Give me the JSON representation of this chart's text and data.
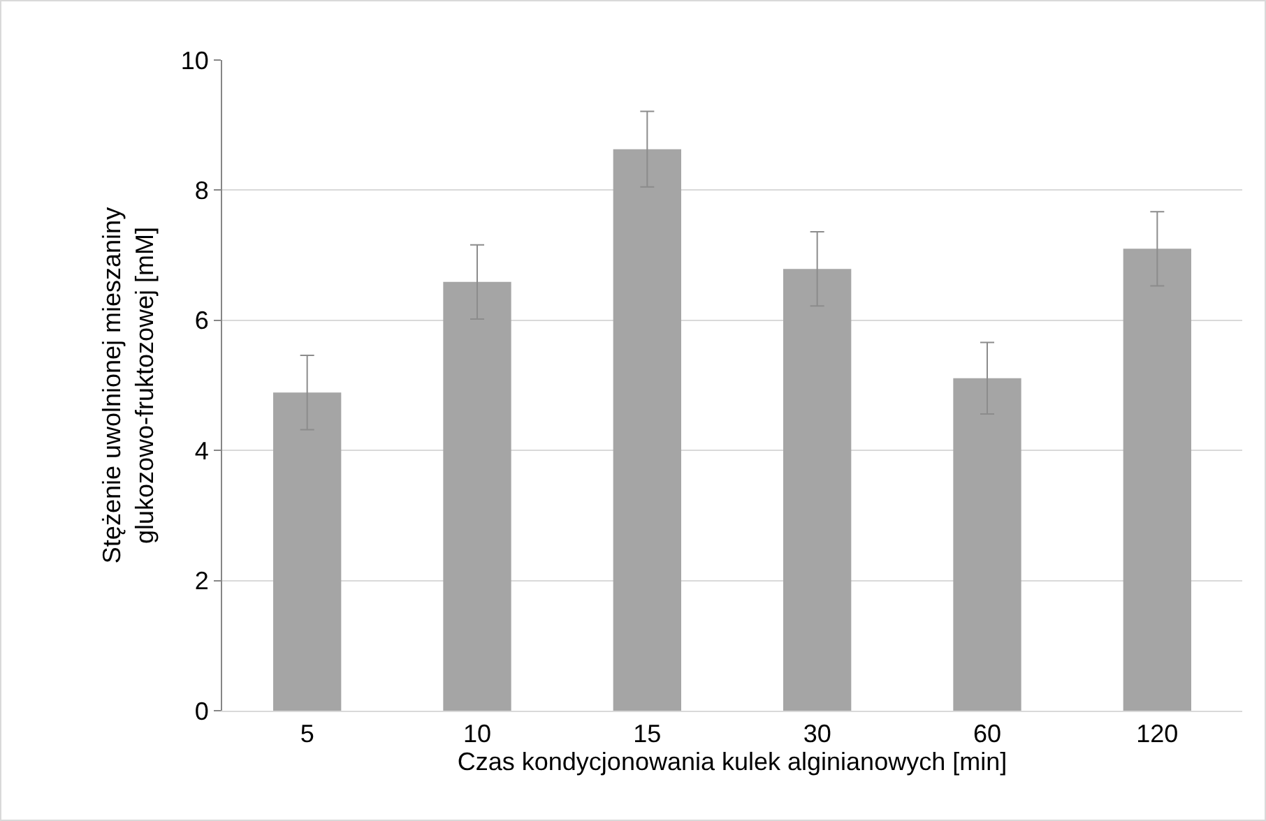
{
  "chart_data": {
    "type": "bar",
    "xlabel": "Czas kondycjonowania kulek alginianowych [min]",
    "ylabel": "Stężenie uwolnionej mieszaniny\nglukozowo-fruktozowej [mM]",
    "categories": [
      "5",
      "10",
      "15",
      "30",
      "60",
      "120"
    ],
    "values": [
      4.89,
      6.59,
      8.63,
      6.79,
      5.11,
      7.1
    ],
    "errors": [
      0.57,
      0.57,
      0.58,
      0.57,
      0.55,
      0.57
    ],
    "color": "#a5a5a5",
    "ylim": [
      0,
      10
    ],
    "yticks": [
      0,
      2,
      4,
      6,
      8,
      10
    ],
    "grid": "y"
  }
}
